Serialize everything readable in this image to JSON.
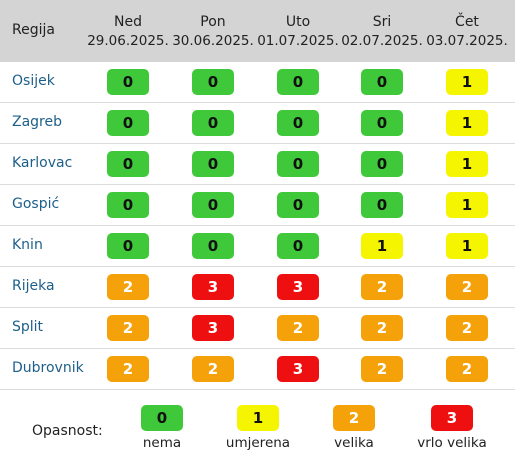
{
  "header": {
    "region_label": "Regija",
    "days": [
      {
        "name": "Ned",
        "date": "29.06.2025."
      },
      {
        "name": "Pon",
        "date": "30.06.2025."
      },
      {
        "name": "Uto",
        "date": "01.07.2025."
      },
      {
        "name": "Sri",
        "date": "02.07.2025."
      },
      {
        "name": "Čet",
        "date": "03.07.2025."
      }
    ]
  },
  "rows": [
    {
      "region": "Osijek",
      "levels": [
        "0",
        "0",
        "0",
        "0",
        "1"
      ]
    },
    {
      "region": "Zagreb",
      "levels": [
        "0",
        "0",
        "0",
        "0",
        "1"
      ]
    },
    {
      "region": "Karlovac",
      "levels": [
        "0",
        "0",
        "0",
        "0",
        "1"
      ]
    },
    {
      "region": "Gospić",
      "levels": [
        "0",
        "0",
        "0",
        "0",
        "1"
      ]
    },
    {
      "region": "Knin",
      "levels": [
        "0",
        "0",
        "0",
        "1",
        "1"
      ]
    },
    {
      "region": "Rijeka",
      "levels": [
        "2",
        "3",
        "3",
        "2",
        "2"
      ]
    },
    {
      "region": "Split",
      "levels": [
        "2",
        "3",
        "2",
        "2",
        "2"
      ]
    },
    {
      "region": "Dubrovnik",
      "levels": [
        "2",
        "2",
        "3",
        "2",
        "2"
      ]
    }
  ],
  "legend": {
    "title": "Opasnost:",
    "items": [
      {
        "level": "0",
        "label": "nema"
      },
      {
        "level": "1",
        "label": "umjerena"
      },
      {
        "level": "2",
        "label": "velika"
      },
      {
        "level": "3",
        "label": "vrlo velika"
      }
    ]
  },
  "colors": {
    "level_0": "#3fc93a",
    "level_1": "#f5f500",
    "level_2": "#f5a10a",
    "level_3": "#ee1010",
    "header_bg": "#d4d4d4",
    "region_link": "#1d5f8a"
  }
}
